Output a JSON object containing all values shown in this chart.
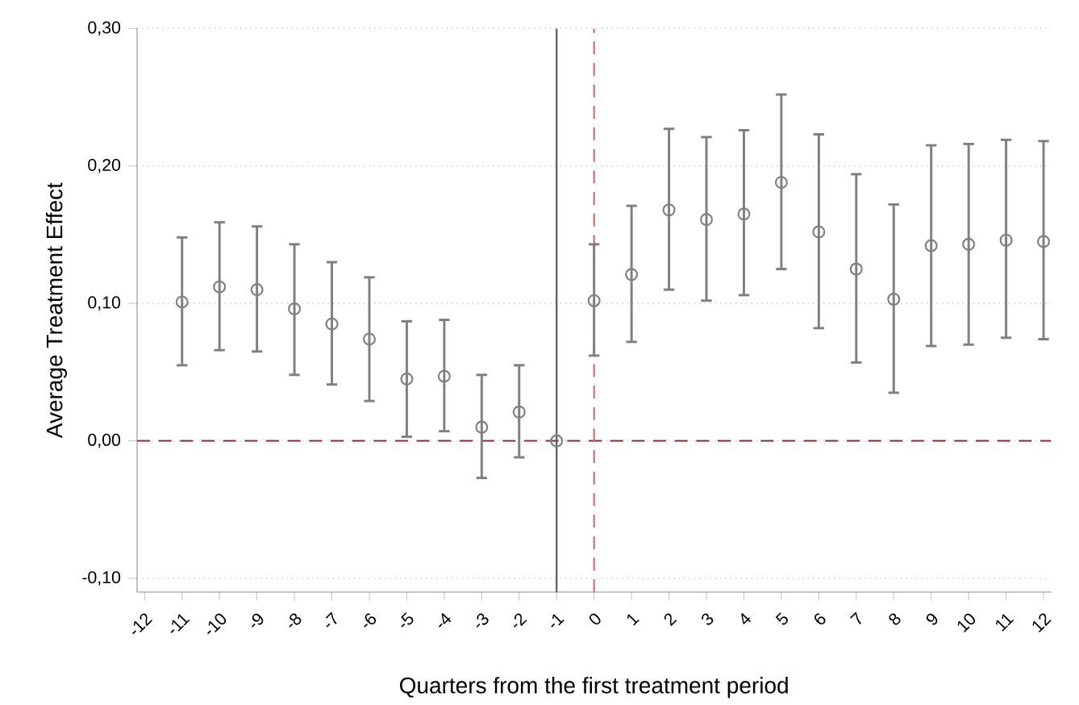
{
  "chart_data": {
    "type": "scatter",
    "xlabel": "Quarters from the first treatment period",
    "ylabel": "Average Treatment Effect",
    "x": [
      -11,
      -10,
      -9,
      -8,
      -7,
      -6,
      -5,
      -4,
      -3,
      -2,
      -1,
      0,
      1,
      2,
      3,
      4,
      5,
      6,
      7,
      8,
      9,
      10,
      11,
      12
    ],
    "values": [
      0.101,
      0.112,
      0.11,
      0.096,
      0.085,
      0.074,
      0.045,
      0.047,
      0.01,
      0.021,
      0.0,
      0.102,
      0.121,
      0.168,
      0.161,
      0.165,
      0.188,
      0.152,
      0.125,
      0.103,
      0.142,
      0.143,
      0.146,
      0.145
    ],
    "errors": [
      [
        0.055,
        0.148
      ],
      [
        0.066,
        0.159
      ],
      [
        0.065,
        0.156
      ],
      [
        0.048,
        0.143
      ],
      [
        0.041,
        0.13
      ],
      [
        0.029,
        0.119
      ],
      [
        0.003,
        0.087
      ],
      [
        0.007,
        0.088
      ],
      [
        -0.027,
        0.048
      ],
      [
        -0.012,
        0.055
      ],
      null,
      [
        0.062,
        0.143
      ],
      [
        0.072,
        0.171
      ],
      [
        0.11,
        0.227
      ],
      [
        0.102,
        0.221
      ],
      [
        0.106,
        0.226
      ],
      [
        0.125,
        0.252
      ],
      [
        0.082,
        0.223
      ],
      [
        0.057,
        0.194
      ],
      [
        0.035,
        0.172
      ],
      [
        0.069,
        0.215
      ],
      [
        0.07,
        0.216
      ],
      [
        0.075,
        0.219
      ],
      [
        0.074,
        0.218
      ]
    ],
    "color": "#7f7f7f",
    "marker": "circle",
    "grid": "y",
    "xlim": [
      -12.2,
      12.2
    ],
    "xticks": [
      -12,
      -11,
      -10,
      -9,
      -8,
      -7,
      -6,
      -5,
      -4,
      -3,
      -2,
      -1,
      0,
      1,
      2,
      3,
      4,
      5,
      6,
      7,
      8,
      9,
      10,
      11,
      12
    ],
    "ylim": [
      -0.11,
      0.3
    ],
    "yticks": [
      {
        "value": -0.1,
        "label": "-0,10"
      },
      {
        "value": 0.0,
        "label": "0,00"
      },
      {
        "value": 0.1,
        "label": "0,10"
      },
      {
        "value": 0.2,
        "label": "0,20"
      },
      {
        "value": 0.3,
        "label": "0,30"
      }
    ],
    "ref_lines": [
      {
        "axis": "y",
        "value": 0,
        "color": "#8b2a2a",
        "line_style": "dashed"
      },
      {
        "axis": "x",
        "value": 0,
        "color": "#c07070",
        "line_style": "dashed"
      },
      {
        "axis": "x",
        "value": -1,
        "color": "#555555",
        "line_style": "solid"
      }
    ]
  }
}
